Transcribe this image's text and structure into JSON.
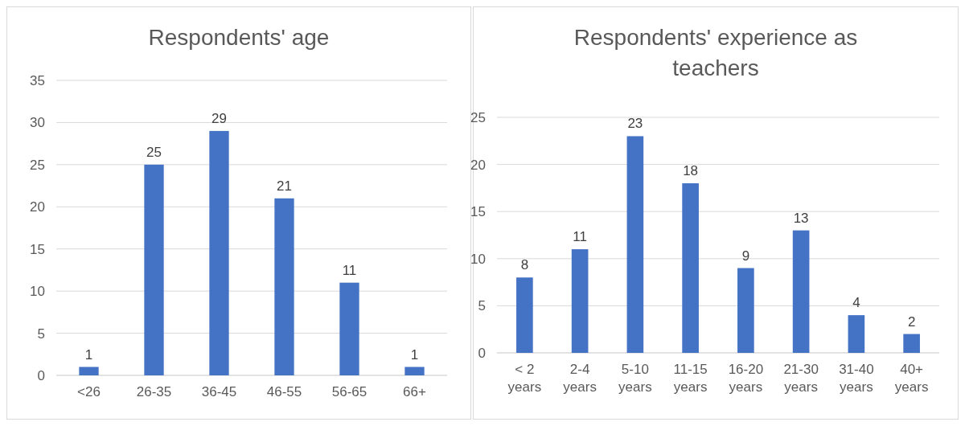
{
  "chart_data": [
    {
      "type": "bar",
      "title": "Respondents' age",
      "categories": [
        "<26",
        "26-35",
        "36-45",
        "46-55",
        "56-65",
        "66+"
      ],
      "values": [
        1,
        25,
        29,
        21,
        11,
        1
      ],
      "color": "#4472c4",
      "ylim": [
        0,
        35
      ],
      "yticks": [
        0,
        5,
        10,
        15,
        20,
        25,
        30,
        35
      ],
      "grid": "y",
      "data_labels": true
    },
    {
      "type": "bar",
      "title": "Respondents' experience as teachers",
      "categories": [
        "< 2 years",
        "2-4 years",
        "5-10 years",
        "11-15 years",
        "16-20 years",
        "21-30 years",
        "31-40 years",
        "40+ years"
      ],
      "values": [
        8,
        11,
        23,
        18,
        9,
        13,
        4,
        2
      ],
      "color": "#4472c4",
      "ylim": [
        0,
        25
      ],
      "yticks": [
        0,
        5,
        10,
        15,
        20,
        25
      ],
      "grid": "y",
      "data_labels": true
    }
  ]
}
